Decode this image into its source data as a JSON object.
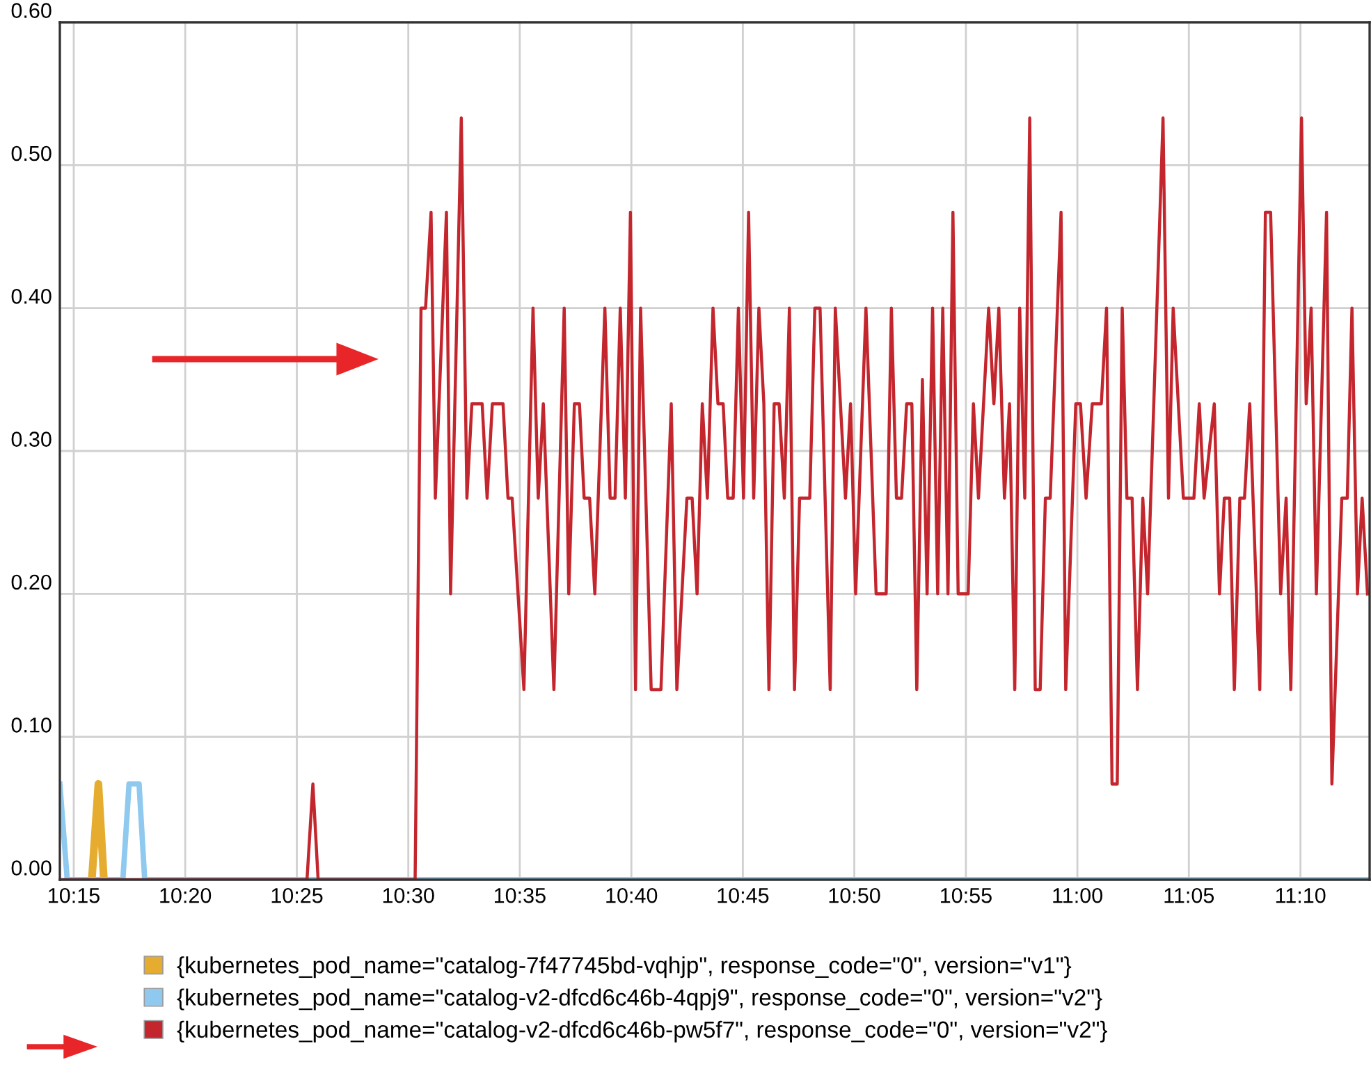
{
  "chart_data": {
    "type": "line",
    "xlim": [
      10.2396,
      11.2184
    ],
    "xticks": [
      {
        "value": 10.25,
        "label": "10:15"
      },
      {
        "value": 10.3333,
        "label": "10:20"
      },
      {
        "value": 10.4167,
        "label": "10:25"
      },
      {
        "value": 10.5,
        "label": "10:30"
      },
      {
        "value": 10.5833,
        "label": "10:35"
      },
      {
        "value": 10.6667,
        "label": "10:40"
      },
      {
        "value": 10.75,
        "label": "10:45"
      },
      {
        "value": 10.8333,
        "label": "10:50"
      },
      {
        "value": 10.9167,
        "label": "10:55"
      },
      {
        "value": 11.0,
        "label": "11:00"
      },
      {
        "value": 11.0833,
        "label": "11:05"
      },
      {
        "value": 11.1667,
        "label": "11:10"
      }
    ],
    "ylim": [
      0,
      0.6
    ],
    "yticks": [
      {
        "value": 0,
        "label": "0.00"
      },
      {
        "value": 0.1,
        "label": "0.10"
      },
      {
        "value": 0.2,
        "label": "0.20"
      },
      {
        "value": 0.3,
        "label": "0.30"
      },
      {
        "value": 0.4,
        "label": "0.40"
      },
      {
        "value": 0.5,
        "label": "0.50"
      },
      {
        "value": 0.6,
        "label": "0.60"
      }
    ],
    "grid": true,
    "legend": "bottom left",
    "marker": "none",
    "line_style": "solid",
    "series": [
      {
        "name": "{kubernetes_pod_name=\"catalog-7f47745bd-vqhjp\", response_code=\"0\", version=\"v1\"}",
        "color": "#e5ac2f",
        "x": [
          10.2635,
          10.2684,
          10.2725
        ],
        "values": [
          0,
          0.067,
          0
        ]
      },
      {
        "name": "{kubernetes_pod_name=\"catalog-v2-dfcd6c46b-4qpj9\", response_code=\"0\", version=\"v2\"}",
        "color": "#8fc9ef",
        "x": [
          10.2396,
          10.2451,
          10.2867,
          10.2913,
          10.2988,
          10.303,
          11.2184
        ],
        "values": [
          0.067,
          0,
          0,
          0.067,
          0.067,
          0,
          0
        ]
      },
      {
        "name": "{kubernetes_pod_name=\"catalog-v2-dfcd6c46b-pw5f7\", response_code=\"0\", version=\"v2\"}",
        "color": "#c4262e",
        "x": [
          10.2396,
          10.4243,
          10.4287,
          10.4326,
          10.5051,
          10.5095,
          10.5129,
          10.517,
          10.5202,
          10.5285,
          10.5316,
          10.5396,
          10.5438,
          10.5475,
          10.5552,
          10.5589,
          10.5628,
          10.5708,
          10.5745,
          10.5776,
          10.5864,
          10.5932,
          10.5971,
          10.6009,
          10.6088,
          10.6165,
          10.6199,
          10.6241,
          10.6279,
          10.6314,
          10.6355,
          10.6394,
          10.6469,
          10.6508,
          10.6545,
          10.6584,
          10.6622,
          10.666,
          10.6698,
          10.6736,
          10.6815,
          10.6888,
          10.6965,
          10.7007,
          10.7082,
          10.7121,
          10.7158,
          10.7197,
          10.7235,
          10.7277,
          10.7314,
          10.7353,
          10.7387,
          10.7428,
          10.7467,
          10.7505,
          10.7543,
          10.7581,
          10.762,
          10.7657,
          10.7695,
          10.7734,
          10.7771,
          10.781,
          10.7848,
          10.7886,
          10.7924,
          10.8,
          10.8038,
          10.8077,
          10.8153,
          10.8191,
          10.8267,
          10.8305,
          10.8343,
          10.842,
          10.8496,
          10.8571,
          10.861,
          10.8648,
          10.8686,
          10.8724,
          10.8763,
          10.88,
          10.8842,
          10.8877,
          10.8918,
          10.8956,
          10.8994,
          10.9033,
          10.907,
          10.9109,
          10.9184,
          10.9223,
          10.9261,
          10.9337,
          10.9376,
          10.9413,
          10.9455,
          10.9493,
          10.9532,
          10.9569,
          10.9607,
          10.9644,
          10.9685,
          10.9722,
          10.9761,
          10.9797,
          10.9878,
          10.9913,
          10.9988,
          11.0023,
          11.0065,
          11.0111,
          11.0179,
          11.0218,
          11.0259,
          11.0298,
          11.0335,
          11.037,
          11.0409,
          11.0449,
          11.0489,
          11.0525,
          11.064,
          11.0681,
          11.0716,
          11.0792,
          11.0871,
          11.0911,
          11.0947,
          11.1023,
          11.1062,
          11.1098,
          11.1138,
          11.1173,
          11.1214,
          11.1249,
          11.1288,
          11.1363,
          11.1405,
          11.1444,
          11.1519,
          11.156,
          11.1595,
          11.1675,
          11.171,
          11.1747,
          11.1786,
          11.1862,
          11.1902,
          11.1976,
          11.2017,
          11.2052,
          11.2093,
          11.2128,
          11.2168
        ],
        "values": [
          0,
          0,
          0.067,
          0,
          0,
          0.4,
          0.4,
          0.467,
          0.267,
          0.467,
          0.2,
          0.533,
          0.267,
          0.333,
          0.333,
          0.267,
          0.333,
          0.333,
          0.267,
          0.267,
          0.133,
          0.4,
          0.267,
          0.333,
          0.133,
          0.4,
          0.2,
          0.333,
          0.333,
          0.267,
          0.267,
          0.2,
          0.4,
          0.267,
          0.267,
          0.4,
          0.267,
          0.467,
          0.133,
          0.4,
          0.133,
          0.133,
          0.333,
          0.133,
          0.267,
          0.267,
          0.2,
          0.333,
          0.267,
          0.4,
          0.333,
          0.333,
          0.267,
          0.267,
          0.4,
          0.267,
          0.467,
          0.267,
          0.4,
          0.333,
          0.133,
          0.333,
          0.333,
          0.267,
          0.4,
          0.133,
          0.267,
          0.267,
          0.4,
          0.4,
          0.133,
          0.4,
          0.267,
          0.333,
          0.2,
          0.4,
          0.2,
          0.2,
          0.4,
          0.267,
          0.267,
          0.333,
          0.333,
          0.133,
          0.35,
          0.2,
          0.4,
          0.2,
          0.4,
          0.2,
          0.467,
          0.2,
          0.2,
          0.333,
          0.267,
          0.4,
          0.333,
          0.4,
          0.267,
          0.333,
          0.133,
          0.4,
          0.267,
          0.533,
          0.133,
          0.133,
          0.267,
          0.267,
          0.467,
          0.133,
          0.333,
          0.333,
          0.267,
          0.333,
          0.333,
          0.4,
          0.067,
          0.067,
          0.4,
          0.267,
          0.267,
          0.133,
          0.267,
          0.2,
          0.533,
          0.267,
          0.4,
          0.267,
          0.267,
          0.333,
          0.267,
          0.333,
          0.2,
          0.267,
          0.267,
          0.133,
          0.267,
          0.267,
          0.333,
          0.133,
          0.467,
          0.467,
          0.2,
          0.267,
          0.133,
          0.533,
          0.333,
          0.4,
          0.2,
          0.467,
          0.067,
          0.267,
          0.267,
          0.4,
          0.2,
          0.267,
          0.2
        ]
      }
    ]
  }
}
